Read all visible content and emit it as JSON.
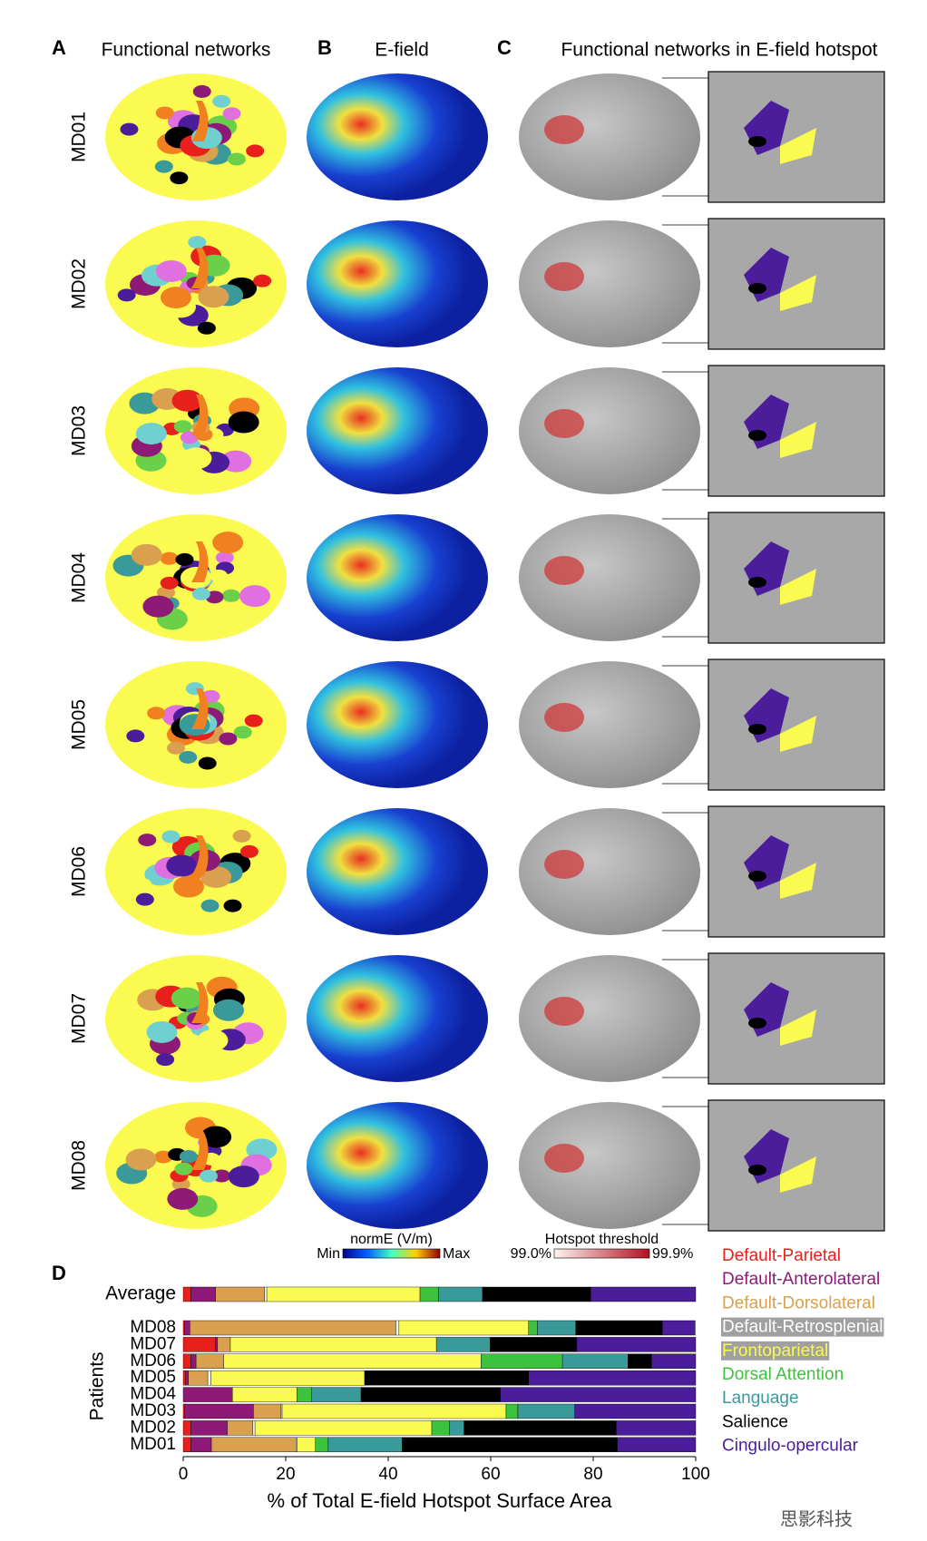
{
  "panels": [
    {
      "label": "A",
      "title": "Functional networks"
    },
    {
      "label": "B",
      "title": "E-field"
    },
    {
      "label": "C",
      "title": "Functional networks in E-field hotspot"
    }
  ],
  "subjects": [
    "MD01",
    "MD02",
    "MD03",
    "MD04",
    "MD05",
    "MD06",
    "MD07",
    "MD08"
  ],
  "colorbars": {
    "efield": {
      "title": "normE (V/m)",
      "min": "Min",
      "max": "Max"
    },
    "hotspot": {
      "title": "Hotspot threshold",
      "min": "99.0%",
      "max": "99.9%"
    }
  },
  "panel_d_label": "D",
  "watermark": "思影科技",
  "chart_data": {
    "type": "bar",
    "orientation": "horizontal",
    "stacked": true,
    "categories": [
      "Average",
      "MD08",
      "MD07",
      "MD06",
      "MD05",
      "MD04",
      "MD03",
      "MD02",
      "MD01"
    ],
    "y_label": "Patients",
    "x_label": "% of Total E-field Hotspot Surface Area",
    "xlim": [
      0,
      100
    ],
    "xticks": [
      0,
      20,
      40,
      60,
      80,
      100
    ],
    "series": [
      {
        "name": "Default-Parietal",
        "color": "#e8201c",
        "values": [
          1.5,
          0.3,
          6.3,
          1.5,
          0.5,
          0,
          0.3,
          1.5,
          1.5
        ]
      },
      {
        "name": "Default-Anterolateral",
        "color": "#8e1a78",
        "values": [
          4.8,
          1,
          0.4,
          1,
          0.5,
          9.6,
          13.4,
          7.1,
          4
        ]
      },
      {
        "name": "Default-Dorsolateral",
        "color": "#d9a050",
        "values": [
          9.6,
          40.2,
          2.5,
          5.4,
          3.8,
          0,
          5.4,
          5,
          16.5
        ]
      },
      {
        "name": "Default-Retrosplenial",
        "color": "#ffffff",
        "values": [
          0.4,
          0.6,
          0,
          0,
          0.6,
          0,
          0.2,
          0.4,
          0.2
        ]
      },
      {
        "name": "Frontoparietal",
        "color": "#fafa50",
        "values": [
          29.9,
          25.3,
          40.2,
          50.2,
          30,
          12.6,
          43.7,
          34.5,
          3.6
        ]
      },
      {
        "name": "Dorsal Attention",
        "color": "#3cc23c",
        "values": [
          3.6,
          1.7,
          0,
          15.9,
          0,
          2.9,
          2.3,
          3.4,
          2.5
        ]
      },
      {
        "name": "Language",
        "color": "#3a9a9a",
        "values": [
          8.6,
          7.5,
          10.5,
          12.8,
          0,
          9.6,
          11.1,
          2.9,
          14.4
        ]
      },
      {
        "name": "Salience",
        "color": "#000000",
        "values": [
          21.1,
          16.9,
          16.9,
          4.6,
          32,
          27.2,
          0,
          29.7,
          42
        ]
      },
      {
        "name": "Cingulo-opercular",
        "color": "#4b1d9a",
        "values": [
          20.5,
          6.4,
          23.2,
          8.6,
          32.6,
          38.1,
          23.6,
          15.5,
          15.3
        ]
      }
    ]
  }
}
